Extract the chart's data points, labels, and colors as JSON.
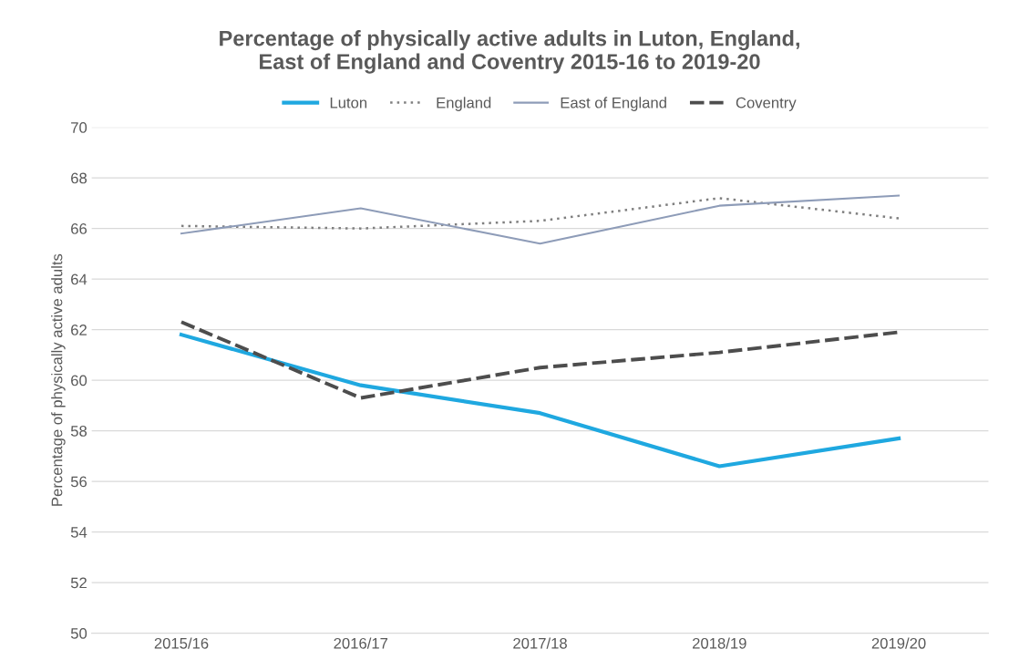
{
  "chart_data": {
    "type": "line",
    "title": "Percentage of physically active adults in Luton, England,\nEast of England and Coventry 2015-16 to 2019-20",
    "ylabel": "Percentage of physically active adults",
    "categories": [
      "2015/16",
      "2016/17",
      "2017/18",
      "2018/19",
      "2019/20"
    ],
    "series": [
      {
        "name": "Luton",
        "color": "#1fa8e0",
        "values": [
          61.8,
          59.8,
          58.7,
          56.6,
          57.7
        ],
        "line_style": "solid"
      },
      {
        "name": "England",
        "color": "#7f7f7f",
        "values": [
          66.1,
          66.0,
          66.3,
          67.2,
          66.4
        ],
        "line_style": "dotted"
      },
      {
        "name": "East of England",
        "color": "#8e9cb8",
        "values": [
          65.8,
          66.8,
          65.4,
          66.9,
          67.3
        ],
        "line_style": "solid"
      },
      {
        "name": "Coventry",
        "color": "#4d4d4d",
        "values": [
          62.3,
          59.3,
          60.5,
          61.1,
          61.9
        ],
        "line_style": "dashed"
      }
    ],
    "ylim": [
      50,
      70
    ],
    "yticks": [
      50,
      52,
      54,
      56,
      58,
      60,
      62,
      64,
      66,
      68,
      70
    ],
    "grid": "y",
    "legend": "top",
    "marker": "none"
  }
}
